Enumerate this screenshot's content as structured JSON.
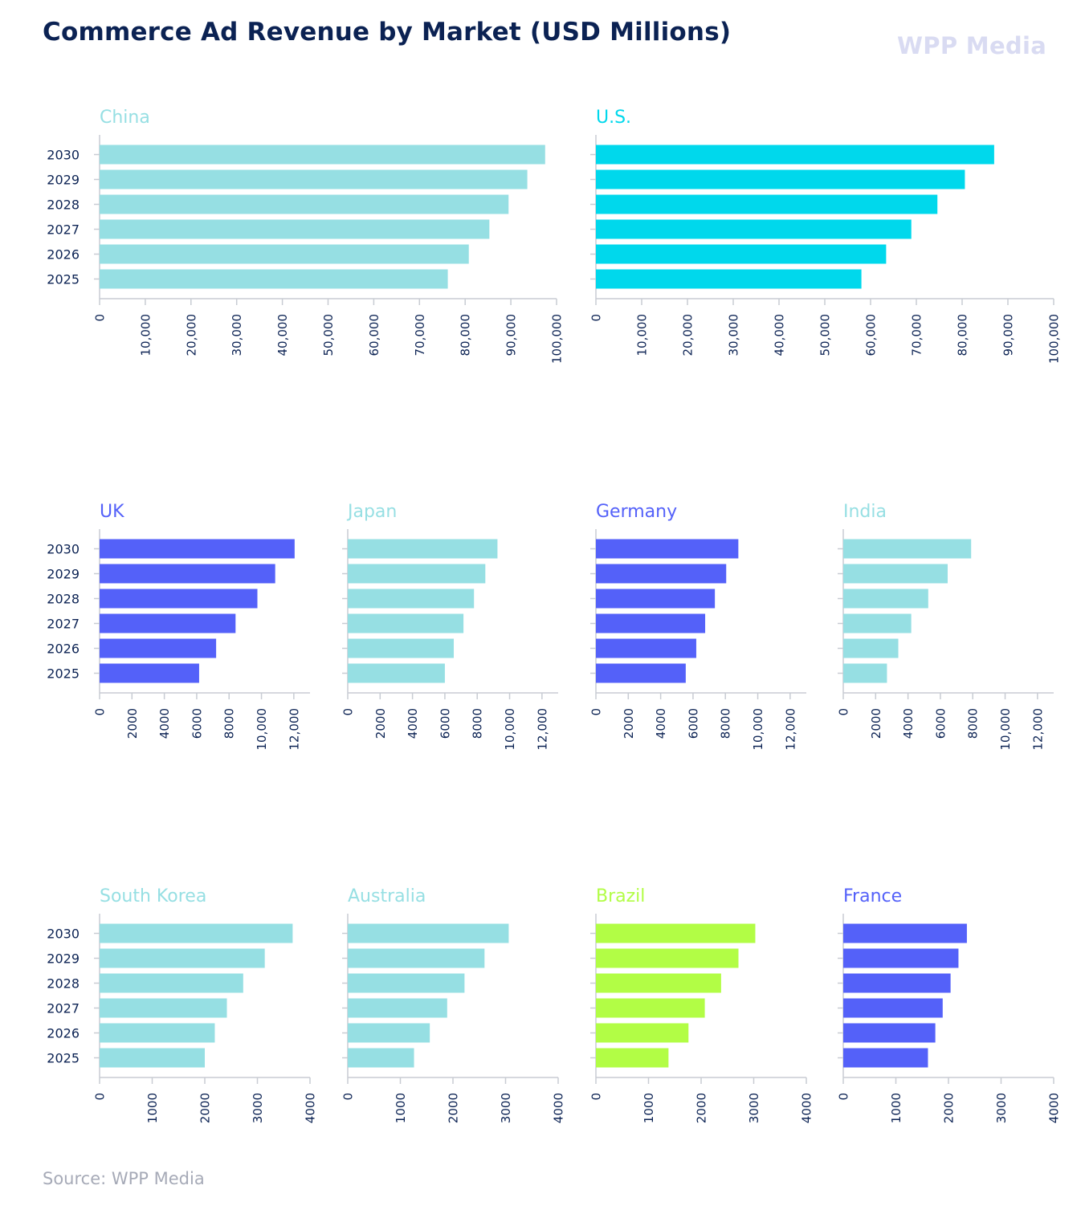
{
  "header": {
    "title": "Commerce Ad Revenue by Market (USD Millions)",
    "logo_text": "WPP Media"
  },
  "footer": {
    "source": "Source: WPP Media"
  },
  "colors": {
    "teal": "#96dfe3",
    "cyan": "#00d8ec",
    "blue": "#5461f9",
    "lime": "#b2fd45",
    "title": "#0b2253",
    "axis": "#c8ccd3",
    "tick_label": "#0b2253"
  },
  "chart_data": [
    {
      "type": "bar",
      "orientation": "horizontal",
      "title": "China",
      "color": "#96dfe3",
      "categories": [
        "2030",
        "2029",
        "2028",
        "2027",
        "2026",
        "2025"
      ],
      "values": [
        97500,
        93600,
        89500,
        85300,
        80800,
        76200
      ],
      "xlim": [
        0,
        100000
      ],
      "ticks": [
        "0",
        "10,000",
        "20,000",
        "30,000",
        "40,000",
        "50,000",
        "60,000",
        "70,000",
        "80,000",
        "90,000",
        "100,000"
      ]
    },
    {
      "type": "bar",
      "orientation": "horizontal",
      "title": "U.S.",
      "color": "#00d8ec",
      "categories": [
        "2030",
        "2029",
        "2028",
        "2027",
        "2026",
        "2025"
      ],
      "values": [
        87000,
        80600,
        74600,
        68900,
        63400,
        58000
      ],
      "xlim": [
        0,
        100000
      ],
      "ticks": [
        "0",
        "10,000",
        "20,000",
        "30,000",
        "40,000",
        "50,000",
        "60,000",
        "70,000",
        "80,000",
        "90,000",
        "100,000"
      ]
    },
    {
      "type": "bar",
      "orientation": "horizontal",
      "title": "UK",
      "color": "#5461f9",
      "categories": [
        "2030",
        "2029",
        "2028",
        "2027",
        "2026",
        "2025"
      ],
      "values": [
        12050,
        10850,
        9750,
        8400,
        7200,
        6150
      ],
      "xlim": [
        0,
        13000
      ],
      "ticks": [
        "0",
        "2000",
        "4000",
        "6000",
        "8000",
        "10,000",
        "12,000"
      ]
    },
    {
      "type": "bar",
      "orientation": "horizontal",
      "title": "Japan",
      "color": "#96dfe3",
      "categories": [
        "2030",
        "2029",
        "2028",
        "2027",
        "2026",
        "2025"
      ],
      "values": [
        9250,
        8500,
        7800,
        7150,
        6550,
        6000
      ],
      "xlim": [
        0,
        13000
      ],
      "ticks": [
        "0",
        "2000",
        "4000",
        "6000",
        "8000",
        "10,000",
        "12,000"
      ]
    },
    {
      "type": "bar",
      "orientation": "horizontal",
      "title": "Germany",
      "color": "#5461f9",
      "categories": [
        "2030",
        "2029",
        "2028",
        "2027",
        "2026",
        "2025"
      ],
      "values": [
        8800,
        8050,
        7350,
        6750,
        6200,
        5550
      ],
      "xlim": [
        0,
        13000
      ],
      "ticks": [
        "0",
        "2000",
        "4000",
        "6000",
        "8000",
        "10,000",
        "12,000"
      ]
    },
    {
      "type": "bar",
      "orientation": "horizontal",
      "title": "India",
      "color": "#96dfe3",
      "categories": [
        "2030",
        "2029",
        "2028",
        "2027",
        "2026",
        "2025"
      ],
      "values": [
        7900,
        6450,
        5250,
        4200,
        3400,
        2700
      ],
      "xlim": [
        0,
        13000
      ],
      "ticks": [
        "0",
        "2000",
        "4000",
        "6000",
        "8000",
        "10,000",
        "12,000"
      ]
    },
    {
      "type": "bar",
      "orientation": "horizontal",
      "title": "South Korea",
      "color": "#96dfe3",
      "categories": [
        "2030",
        "2029",
        "2028",
        "2027",
        "2026",
        "2025"
      ],
      "values": [
        3670,
        3140,
        2730,
        2420,
        2190,
        2000
      ],
      "xlim": [
        0,
        4000
      ],
      "ticks": [
        "0",
        "1000",
        "2000",
        "3000",
        "4000"
      ]
    },
    {
      "type": "bar",
      "orientation": "horizontal",
      "title": "Australia",
      "color": "#96dfe3",
      "categories": [
        "2030",
        "2029",
        "2028",
        "2027",
        "2026",
        "2025"
      ],
      "values": [
        3060,
        2600,
        2220,
        1890,
        1560,
        1260
      ],
      "xlim": [
        0,
        4000
      ],
      "ticks": [
        "0",
        "1000",
        "2000",
        "3000",
        "4000"
      ]
    },
    {
      "type": "bar",
      "orientation": "horizontal",
      "title": "Brazil",
      "color": "#b2fd45",
      "categories": [
        "2030",
        "2029",
        "2028",
        "2027",
        "2026",
        "2025"
      ],
      "values": [
        3030,
        2710,
        2380,
        2070,
        1760,
        1380
      ],
      "xlim": [
        0,
        4000
      ],
      "ticks": [
        "0",
        "1000",
        "2000",
        "3000",
        "4000"
      ]
    },
    {
      "type": "bar",
      "orientation": "horizontal",
      "title": "France",
      "color": "#5461f9",
      "categories": [
        "2030",
        "2029",
        "2028",
        "2027",
        "2026",
        "2025"
      ],
      "values": [
        2350,
        2190,
        2040,
        1890,
        1750,
        1610
      ],
      "xlim": [
        0,
        4000
      ],
      "ticks": [
        "0",
        "1000",
        "2000",
        "3000",
        "4000"
      ]
    }
  ]
}
